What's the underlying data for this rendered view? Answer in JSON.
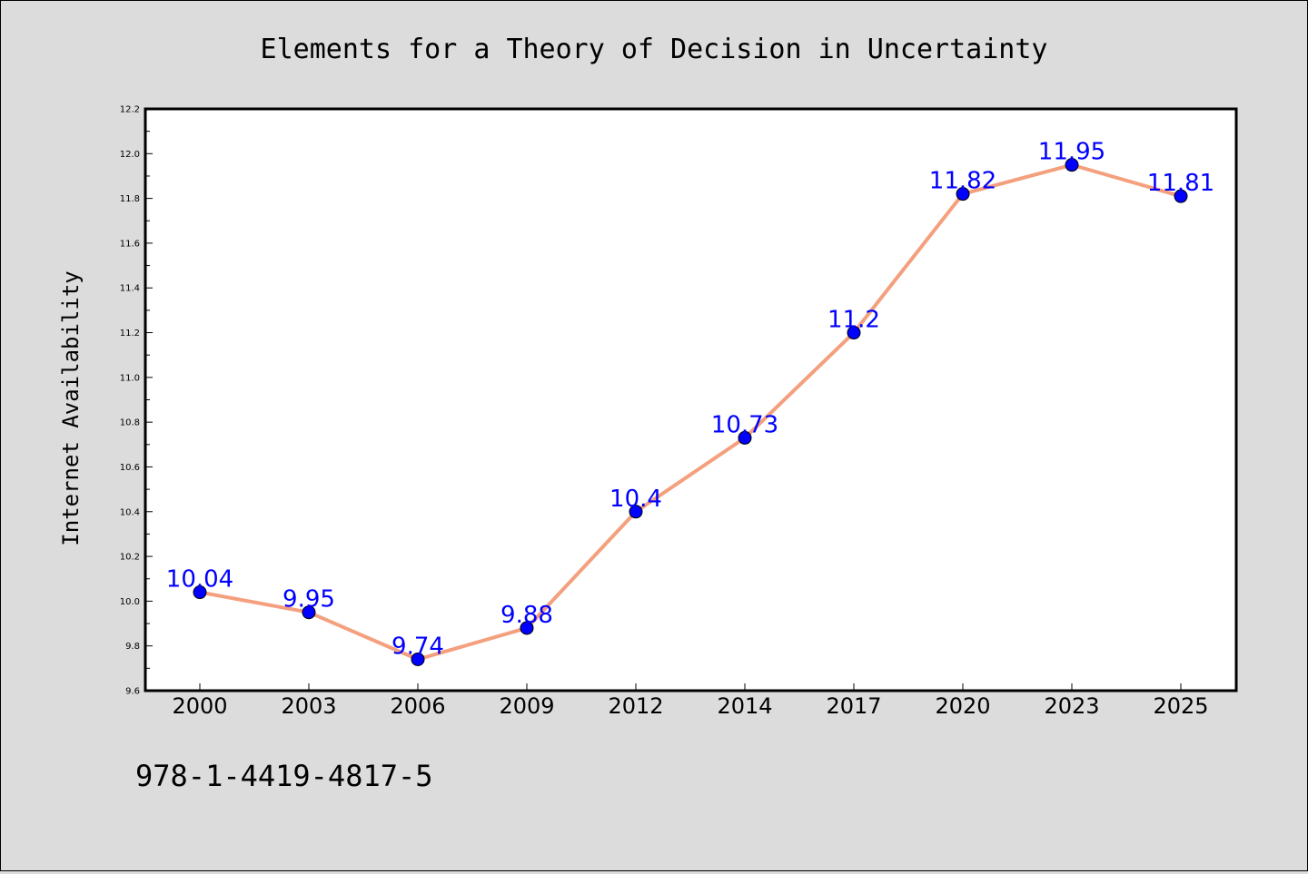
{
  "chart_data": {
    "type": "line",
    "title": "Elements for a Theory of Decision in Uncertainty",
    "xlabel": "",
    "ylabel": "Internet Availability",
    "categories": [
      "2000",
      "2003",
      "2006",
      "2009",
      "2012",
      "2014",
      "2017",
      "2020",
      "2023",
      "2025"
    ],
    "series": [
      {
        "values": [
          10.04,
          9.95,
          9.74,
          9.88,
          10.4,
          10.73,
          11.2,
          11.82,
          11.95,
          11.81
        ]
      }
    ],
    "data_labels": [
      "10.04",
      "9.95",
      "9.74",
      "9.88",
      "10.4",
      "10.73",
      "11.2",
      "11.82",
      "11.95",
      "11.81"
    ],
    "ylim": [
      9.6,
      12.2
    ],
    "yticks": [
      "9.6",
      "9.8",
      "10.0",
      "10.2",
      "10.4",
      "10.6",
      "10.8",
      "11.0",
      "11.2",
      "11.4",
      "11.6",
      "11.8",
      "12.0",
      "12.2"
    ],
    "grid": false,
    "legend": "none",
    "colors": {
      "line": "#f4a07e",
      "marker": "#0000ff",
      "data_label": "#0000ff",
      "plot_background": "#ffffff",
      "figure_background": "#dcdcdc"
    }
  },
  "footer_code": "978-1-4419-4817-5"
}
